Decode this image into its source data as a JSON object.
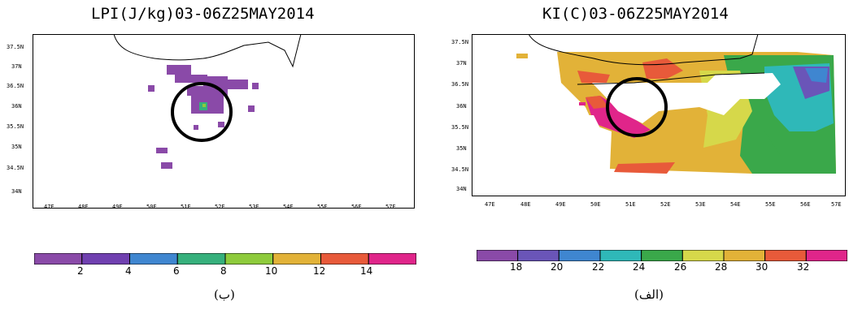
{
  "left_panel": {
    "title": "LPI(J/kg)03-06Z25MAY2014",
    "y_labels": [
      "37.5N",
      "37N",
      "36.5N",
      "36N",
      "35.5N",
      "35N",
      "34.5N",
      "34N"
    ],
    "x_labels": [
      "47E",
      "48E",
      "49E",
      "50E",
      "51E",
      "52E",
      "53E",
      "54E",
      "55E",
      "56E",
      "57E"
    ],
    "colorbar": {
      "colors": [
        "#8a4aa8",
        "#7040b0",
        "#3f86d0",
        "#36b07c",
        "#8ecb3c",
        "#e2b238",
        "#e85a3a",
        "#e0258a"
      ],
      "labels": [
        "2",
        "4",
        "6",
        "8",
        "10",
        "12",
        "14"
      ]
    },
    "caption": "(ب)"
  },
  "right_panel": {
    "title": "KI(C)03-06Z25MAY2014",
    "y_labels": [
      "37.5N",
      "37N",
      "36.5N",
      "36N",
      "35.5N",
      "35N",
      "34.5N",
      "34N"
    ],
    "x_labels": [
      "47E",
      "48E",
      "49E",
      "50E",
      "51E",
      "52E",
      "53E",
      "54E",
      "55E",
      "56E",
      "57E"
    ],
    "colorbar": {
      "colors": [
        "#8a4aa8",
        "#6a55b8",
        "#3f86d0",
        "#2fb8b8",
        "#3aa84a",
        "#d6d84a",
        "#e2b238",
        "#e85a3a",
        "#e0258a"
      ],
      "labels": [
        "18",
        "20",
        "22",
        "24",
        "26",
        "28",
        "30",
        "32"
      ]
    },
    "caption": "(الف)"
  }
}
